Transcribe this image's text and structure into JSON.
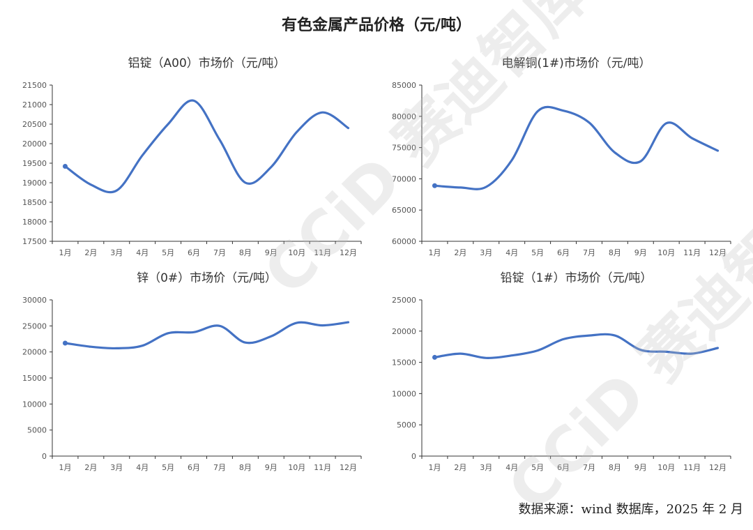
{
  "page": {
    "title": "有色金属产品价格（元/吨）",
    "source": "数据来源：wind 数据库，2025 年 2 月",
    "watermark": "CCiD 赛迪智库",
    "line_color": "#4472C4"
  },
  "chart_data": [
    {
      "type": "line",
      "title": "铝锭（A00）市场价（元/吨）",
      "categories": [
        "1月",
        "2月",
        "3月",
        "4月",
        "5月",
        "6月",
        "7月",
        "8月",
        "9月",
        "10月",
        "11月",
        "12月"
      ],
      "series": [
        {
          "values": [
            19420,
            18950,
            18800,
            19700,
            20500,
            21100,
            20100,
            19000,
            19400,
            20300,
            20800,
            20400
          ]
        }
      ],
      "ylim": [
        17500,
        21500
      ],
      "yticks": [
        17500,
        18000,
        18500,
        19000,
        19500,
        20000,
        20500,
        21000,
        21500
      ]
    },
    {
      "type": "line",
      "title": "电解铜(1#)市场价（元/吨）",
      "categories": [
        "1月",
        "2月",
        "3月",
        "4月",
        "5月",
        "6月",
        "7月",
        "8月",
        "9月",
        "10月",
        "11月",
        "12月"
      ],
      "series": [
        {
          "values": [
            68900,
            68600,
            68700,
            73000,
            80800,
            80900,
            79000,
            74200,
            72800,
            78900,
            76500,
            74500
          ]
        }
      ],
      "ylim": [
        60000,
        85000
      ],
      "yticks": [
        60000,
        65000,
        70000,
        75000,
        80000,
        85000
      ]
    },
    {
      "type": "line",
      "title": "锌（0#）市场价（元/吨）",
      "categories": [
        "1月",
        "2月",
        "3月",
        "4月",
        "5月",
        "6月",
        "7月",
        "8月",
        "9月",
        "10月",
        "11月",
        "12月"
      ],
      "series": [
        {
          "values": [
            21700,
            21000,
            20700,
            21200,
            23600,
            23800,
            25000,
            21800,
            23000,
            25600,
            25100,
            25700
          ]
        }
      ],
      "ylim": [
        0,
        30000
      ],
      "yticks": [
        0,
        5000,
        10000,
        15000,
        20000,
        25000,
        30000
      ]
    },
    {
      "type": "line",
      "title": "铅锭（1#）市场价（元/吨）",
      "categories": [
        "1月",
        "2月",
        "3月",
        "4月",
        "5月",
        "6月",
        "7月",
        "8月",
        "9月",
        "10月",
        "11月",
        "12月"
      ],
      "series": [
        {
          "values": [
            15800,
            16400,
            15700,
            16100,
            16900,
            18700,
            19300,
            19300,
            17000,
            16700,
            16400,
            17300
          ]
        }
      ],
      "ylim": [
        0,
        25000
      ],
      "yticks": [
        0,
        5000,
        10000,
        15000,
        20000,
        25000
      ]
    }
  ]
}
